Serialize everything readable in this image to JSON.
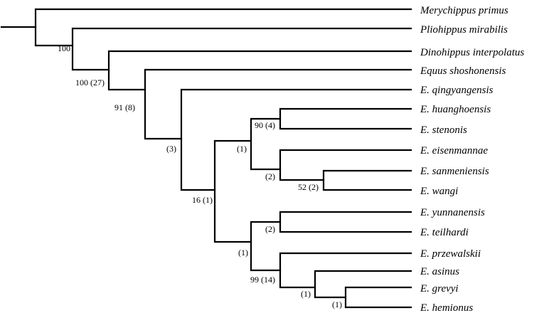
{
  "tree": {
    "taxa": [
      "Merychippus primus",
      "Pliohippus mirabilis",
      "Dinohippus interpolatus",
      "Equus shoshonensis",
      "E. qingyangensis",
      "E. huanghoensis",
      "E. stenonis",
      "E. eisenmannae",
      "E. sanmeniensis",
      "E. wangi",
      "E. yunnanensis",
      "E. teilhardi",
      "E. przewalskii",
      "E. asinus",
      "E. grevyi",
      "E. hemionus"
    ],
    "support_labels": [
      "100",
      "100 (27)",
      "91 (8)",
      "(3)",
      "16 (1)",
      "(1)",
      "90 (4)",
      "(2)",
      "52 (2)",
      "(1)",
      "(2)",
      "99 (14)",
      "(1)",
      "(1)"
    ]
  }
}
